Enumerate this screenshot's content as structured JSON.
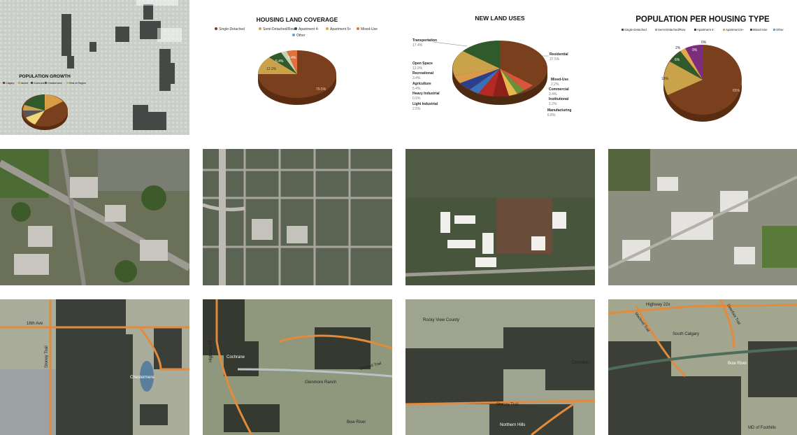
{
  "population_growth": {
    "title": "POPULATION GROWTH",
    "legend": [
      "Calgary",
      "Airdrie",
      "Cochrane",
      "Chestermere",
      "Rest of Region"
    ]
  },
  "housing_land_coverage": {
    "title": "HOUSING LAND COVERAGE",
    "legend": [
      "Single-Detached",
      "Semi-Detached/Row",
      "Apartment 4-",
      "Apartment 5+",
      "Mixed-Use",
      "Other"
    ],
    "labels": [
      "79.5%",
      "12.2%",
      "5.4%",
      "5.4%"
    ]
  },
  "new_land_uses": {
    "title": "NEW LAND USES",
    "labels": [
      {
        "name": "Transportation",
        "value": "17.4%"
      },
      {
        "name": "Open Space",
        "value": "12.9%"
      },
      {
        "name": "Recreational",
        "value": "3.4%"
      },
      {
        "name": "Agriculture",
        "value": "5.4%"
      },
      {
        "name": "Heavy Industrial",
        "value": "0.5%"
      },
      {
        "name": "Light Industrial",
        "value": "2.5%"
      },
      {
        "name": "Residential",
        "value": "37.5%"
      },
      {
        "name": "Mixed-Use",
        "value": "2.2%"
      },
      {
        "name": "Commercial",
        "value": "3.4%"
      },
      {
        "name": "Institutional",
        "value": "1.2%"
      },
      {
        "name": "Manufacturing",
        "value": "6.8%"
      }
    ]
  },
  "population_per_housing_type": {
    "title": "POPULATION PER HOUSING TYPE",
    "legend": [
      "Single-Detached",
      "Semi-Detached/Row",
      "Apartment 4-",
      "Apartment 5+",
      "Mixed-Use",
      "Other"
    ],
    "labels": [
      "0%",
      "2%",
      "6%",
      "9%",
      "16%",
      "65%"
    ]
  },
  "maps": {
    "map1": {
      "labels": [
        "16th Ave",
        "Stoney Trail",
        "Chestermere"
      ]
    },
    "map2": {
      "labels": [
        "Cochrane",
        "Highway 22",
        "Glenmore Ranch",
        "Bow River",
        "Ottewell Trail"
      ]
    },
    "map3": {
      "labels": [
        "Rocky View County",
        "Crossiron",
        "Stoney Trail",
        "Northern Hills"
      ]
    },
    "map4": {
      "labels": [
        "Highway 22x",
        "Deerfoot Trail",
        "Macleod Trail",
        "South Calgary",
        "Bow River",
        "MD of Foothills"
      ]
    }
  },
  "colors": {
    "single_detached": "#7a3f1c",
    "semi_detached": "#c9a24a",
    "apartment4": "#2f5a2b",
    "apartment5": "#e2a64b",
    "mixed_use": "#7c2e7d",
    "other": "#5aa3d6",
    "road": "#e38b3c"
  }
}
